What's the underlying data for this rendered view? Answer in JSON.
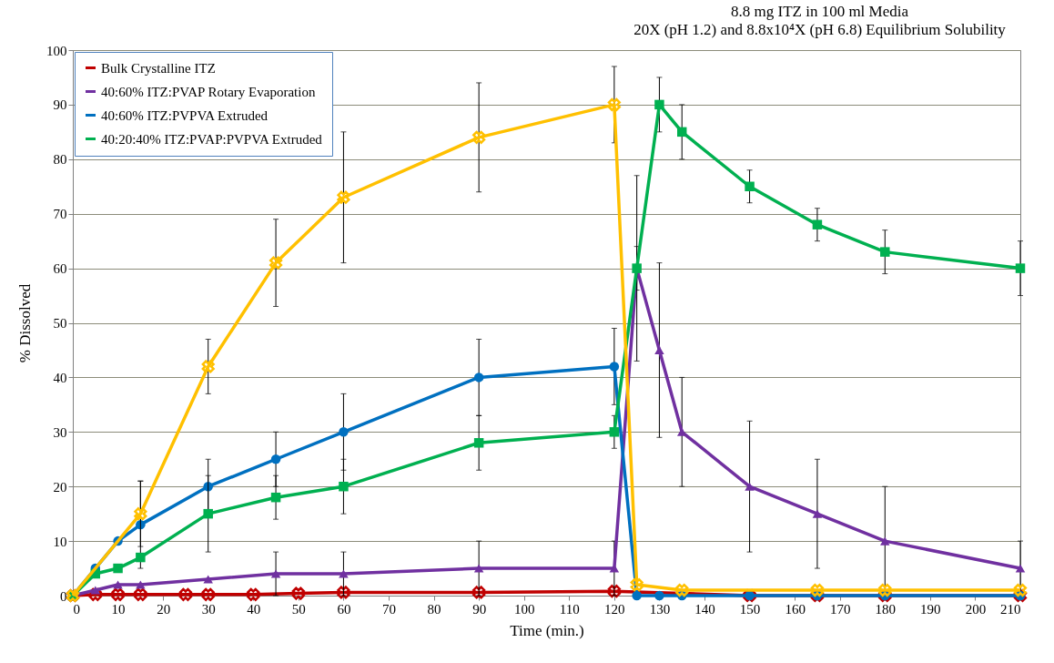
{
  "chart_data": {
    "type": "line",
    "title": "8.8 mg ITZ in 100 ml Media",
    "subtitle": "20X (pH 1.2) and 8.8x10⁴X (pH 6.8) Equilibrium Solubility",
    "xlabel": "Time (min.)",
    "ylabel": "% Dissolved",
    "xlim": [
      0,
      210
    ],
    "xticks": [
      0,
      10,
      20,
      30,
      40,
      50,
      60,
      70,
      80,
      90,
      100,
      110,
      120,
      130,
      140,
      150,
      160,
      170,
      180,
      190,
      200,
      210
    ],
    "ylim": [
      0,
      100
    ],
    "yticks": [
      0,
      10,
      20,
      30,
      40,
      50,
      60,
      70,
      80,
      90,
      100
    ],
    "grid": "y",
    "legend": "top left",
    "series": [
      {
        "name": "Bulk Crystalline ITZ",
        "color": "#c00000",
        "marker": "cross",
        "x": [
          0,
          5,
          10,
          15,
          25,
          30,
          40,
          50,
          60,
          90,
          120,
          150,
          165,
          180,
          210
        ],
        "values": [
          0,
          0.2,
          0.2,
          0.2,
          0.2,
          0.2,
          0.2,
          0.4,
          0.6,
          0.6,
          0.8,
          0,
          0,
          0,
          0
        ]
      },
      {
        "name": "40:60% ITZ:PVAP Rotary Evaporation",
        "color": "#7030a0",
        "marker": "triangle",
        "x": [
          0,
          5,
          10,
          15,
          30,
          45,
          60,
          90,
          120,
          125,
          130,
          135,
          150,
          165,
          180,
          210
        ],
        "values": [
          0,
          1,
          2,
          2,
          3,
          4,
          4,
          5,
          5,
          60,
          45,
          30,
          20,
          15,
          10,
          5
        ],
        "errors": [
          null,
          null,
          null,
          null,
          null,
          4,
          4,
          5,
          5,
          4,
          16,
          10,
          12,
          10,
          10,
          5
        ]
      },
      {
        "name": "40:60% ITZ:PVPVA Extruded",
        "color": "#0070c0",
        "marker": "circle",
        "x": [
          0,
          5,
          10,
          15,
          30,
          45,
          60,
          90,
          120,
          125,
          130,
          135,
          150,
          165,
          180,
          210
        ],
        "values": [
          0,
          5,
          10,
          13,
          20,
          25,
          30,
          40,
          42,
          0,
          0,
          0,
          0,
          0,
          0,
          0
        ],
        "errors": [
          null,
          null,
          null,
          8,
          5,
          5,
          7,
          7,
          7,
          null,
          null,
          null,
          null,
          null,
          null,
          null
        ]
      },
      {
        "name": "40:20:40% ITZ:PVAP:PVPVA Extruded",
        "color": "#00b050",
        "marker": "square",
        "x": [
          0,
          5,
          10,
          15,
          30,
          45,
          60,
          90,
          120,
          125,
          130,
          135,
          150,
          165,
          180,
          210
        ],
        "values": [
          0,
          4,
          5,
          7,
          15,
          18,
          20,
          28,
          30,
          60,
          90,
          85,
          75,
          68,
          63,
          60
        ],
        "errors": [
          null,
          null,
          null,
          null,
          7,
          4,
          5,
          5,
          3,
          17,
          5,
          5,
          3,
          3,
          4,
          5
        ]
      },
      {
        "color": "#ffc000",
        "marker": "cross",
        "x": [
          0,
          15,
          30,
          45,
          60,
          90,
          120,
          125,
          135,
          165,
          180,
          210
        ],
        "values": [
          0,
          15,
          42,
          61,
          73,
          84,
          90,
          2,
          1,
          1,
          1,
          1
        ],
        "errors": [
          null,
          6,
          5,
          8,
          12,
          10,
          7,
          null,
          null,
          null,
          null,
          null
        ]
      }
    ]
  }
}
